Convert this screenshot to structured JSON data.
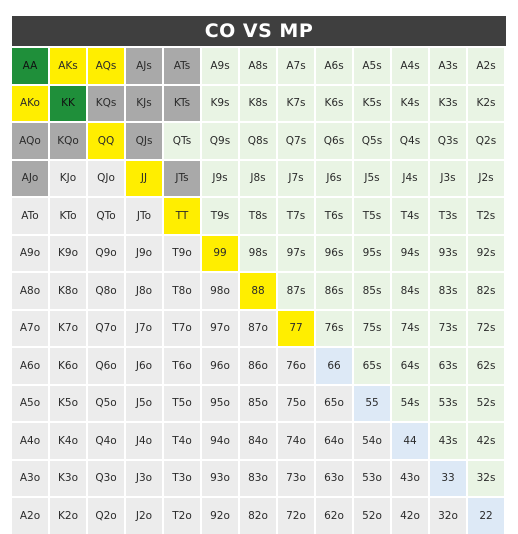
{
  "title": "CO VS MP",
  "colors": {
    "green": "#1f8f3a",
    "yellow": "#ffee00",
    "gray": "#a9a9a9",
    "pair": "#dde9f6",
    "suited": "#e9f4e4",
    "offsuit": "#ececec"
  },
  "ranks": [
    "A",
    "K",
    "Q",
    "J",
    "T",
    "9",
    "8",
    "7",
    "6",
    "5",
    "4",
    "3",
    "2"
  ],
  "overrides": {
    "AA": "green",
    "KK": "green",
    "AKs": "yellow",
    "AQs": "yellow",
    "AKo": "yellow",
    "QQ": "yellow",
    "JJ": "yellow",
    "TT": "yellow",
    "99": "yellow",
    "88": "yellow",
    "77": "yellow",
    "AJs": "gray",
    "ATs": "gray",
    "KQs": "gray",
    "KJs": "gray",
    "KTs": "gray",
    "AQo": "gray",
    "KQo": "gray",
    "QJs": "gray",
    "AJo": "gray",
    "JTs": "gray"
  }
}
